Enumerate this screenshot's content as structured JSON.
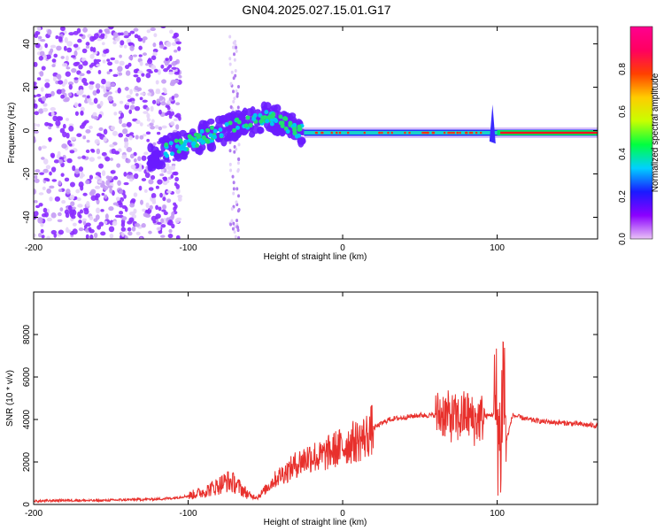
{
  "title": "GN04.2025.027.15.01.G17",
  "chart_data": [
    {
      "type": "heatmap",
      "xlabel": "Height of straight line (km)",
      "ylabel": "Frequency (Hz)",
      "xlim": [
        -200,
        165
      ],
      "ylim": [
        -50,
        48
      ],
      "xticks": [
        -200,
        -100,
        0,
        100
      ],
      "yticks": [
        -40,
        -20,
        0,
        20,
        40
      ],
      "colorbar": {
        "label": "Normalized spectral amplitude",
        "range": [
          0.0,
          1.0
        ],
        "ticks": [
          0.0,
          0.2,
          0.4,
          0.6,
          0.8
        ],
        "colormap": [
          "#e9c3f6",
          "#8b00ff",
          "#1a1aff",
          "#00d0ff",
          "#00ff40",
          "#c8ff00",
          "#ffcc00",
          "#ff4000",
          "#ff0060",
          "#ff0090"
        ]
      },
      "line_track": [
        {
          "x": -125,
          "f": -12
        },
        {
          "x": -110,
          "f": -8
        },
        {
          "x": -90,
          "f": -3
        },
        {
          "x": -70,
          "f": 2
        },
        {
          "x": -50,
          "f": 6
        },
        {
          "x": -40,
          "f": 4
        },
        {
          "x": -30,
          "f": 0
        },
        {
          "x": -20,
          "f": -1
        },
        {
          "x": 0,
          "f": -1
        },
        {
          "x": 50,
          "f": -1
        },
        {
          "x": 100,
          "f": -1
        },
        {
          "x": 165,
          "f": -1
        }
      ]
    },
    {
      "type": "line",
      "xlabel": "Height of straight line (km)",
      "ylabel": "SNR (10 * v/v)",
      "xlim": [
        -200,
        165
      ],
      "ylim": [
        0,
        10000
      ],
      "xticks": [
        -200,
        -100,
        0,
        100
      ],
      "yticks": [
        0,
        2000,
        4000,
        6000,
        8000
      ],
      "color": "#e8302c",
      "series": [
        {
          "x": [
            -200,
            -180,
            -160,
            -140,
            -120,
            -110,
            -100,
            -90,
            -80,
            -75,
            -70,
            -65,
            -60,
            -55,
            -50,
            -45,
            -40,
            -35,
            -30,
            -25,
            -20,
            -15,
            -10,
            -5,
            0,
            5,
            10,
            15,
            20,
            25,
            30,
            40,
            50,
            60,
            65,
            70,
            75,
            80,
            85,
            90,
            95,
            100,
            102,
            104,
            106,
            110,
            120,
            130,
            140,
            150,
            165
          ],
          "y": [
            150,
            200,
            180,
            220,
            250,
            300,
            400,
            600,
            900,
            1100,
            1000,
            700,
            400,
            350,
            700,
            1100,
            1400,
            1600,
            1900,
            2100,
            2300,
            2200,
            2400,
            2600,
            2700,
            2900,
            3000,
            3200,
            3600,
            3800,
            4000,
            4100,
            4200,
            4200,
            4300,
            4100,
            4000,
            4300,
            3900,
            4100,
            4200,
            4300,
            2500,
            6500,
            3000,
            4200,
            4000,
            3900,
            3850,
            3800,
            3700
          ]
        }
      ]
    }
  ]
}
